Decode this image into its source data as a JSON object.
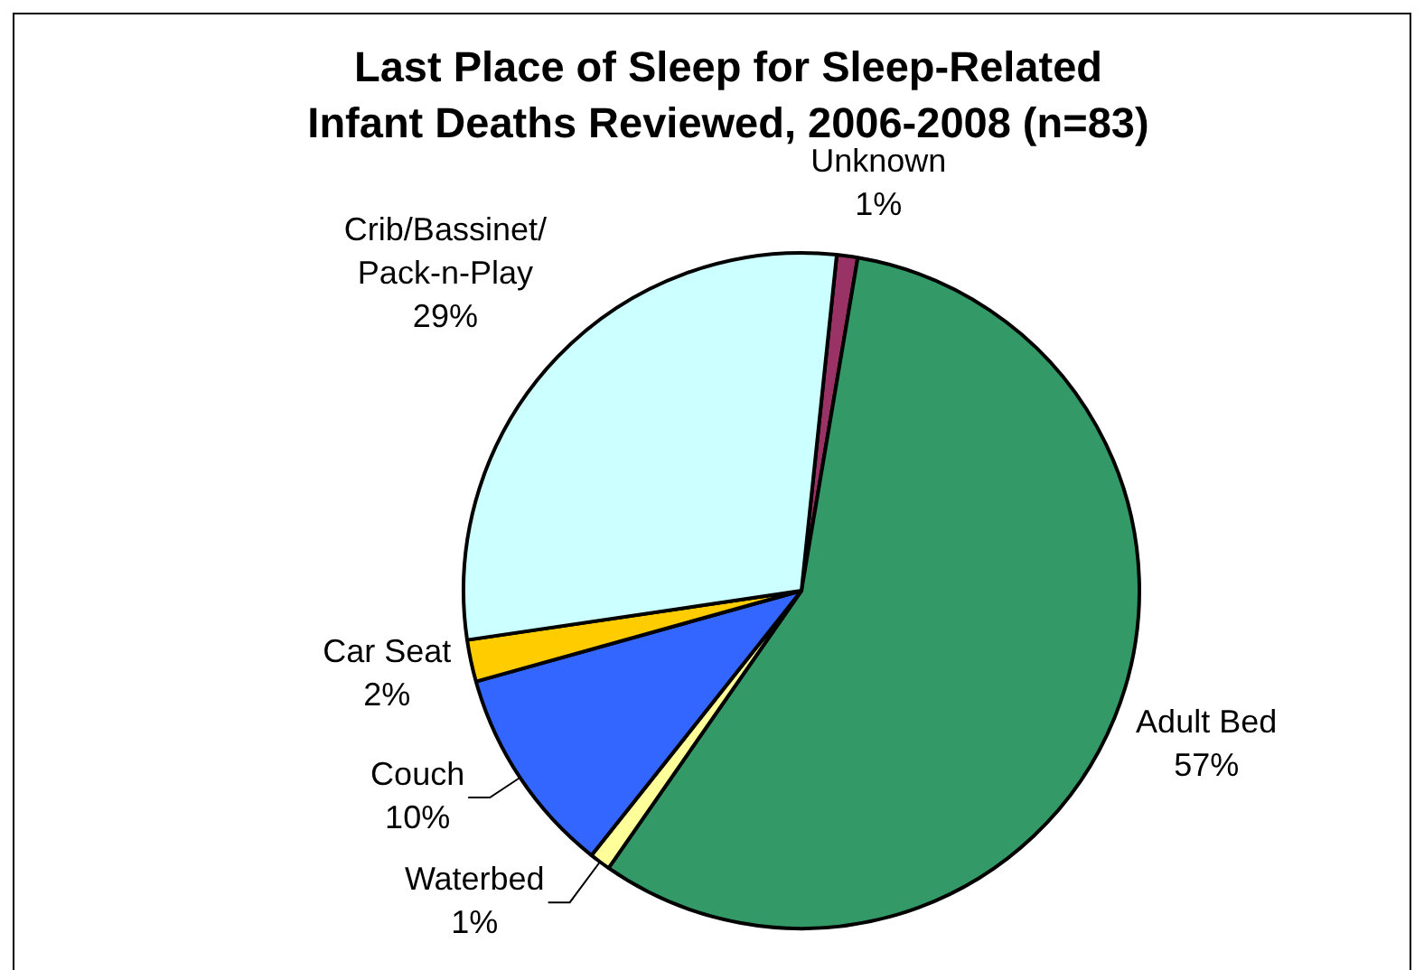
{
  "chart_data": {
    "type": "pie",
    "title": "Last Place of Sleep for Sleep-Related Infant Deaths Reviewed, 2006-2008 (n=83)",
    "categories": [
      "Unknown",
      "Adult Bed",
      "Waterbed",
      "Couch",
      "Car Seat",
      "Crib/Bassinet/Pack-n-Play"
    ],
    "values": [
      1,
      57,
      1,
      10,
      2,
      29
    ],
    "colors": [
      "#993366",
      "#339966",
      "#ffff99",
      "#3366ff",
      "#ffcc00",
      "#ccffff"
    ],
    "value_labels": [
      "1%",
      "57%",
      "1%",
      "10%",
      "2%",
      "29%"
    ]
  }
}
